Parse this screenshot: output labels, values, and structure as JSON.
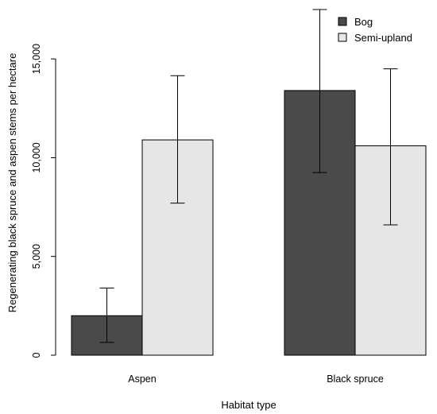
{
  "chart_data": {
    "type": "bar",
    "categories": [
      "Aspen",
      "Black spruce"
    ],
    "series": [
      {
        "name": "Bog",
        "color": "#4a4a4a",
        "values": [
          2000,
          13400
        ],
        "error_low": [
          650,
          9250
        ],
        "error_high": [
          3400,
          17500
        ]
      },
      {
        "name": "Semi-upland",
        "color": "#e6e6e6",
        "values": [
          10900,
          10600
        ],
        "error_low": [
          7700,
          6600
        ],
        "error_high": [
          14150,
          14500
        ]
      }
    ],
    "xlabel": "Habitat type",
    "ylabel": "Regenerating black spruce and aspen stems per hectare",
    "ylim": [
      0,
      17500
    ],
    "yticks": [
      0,
      5000,
      10000,
      15000
    ],
    "ytick_labels": [
      "0",
      "5,000",
      "10,000",
      "15,000"
    ],
    "grid": false,
    "legend_position": "top-right"
  }
}
